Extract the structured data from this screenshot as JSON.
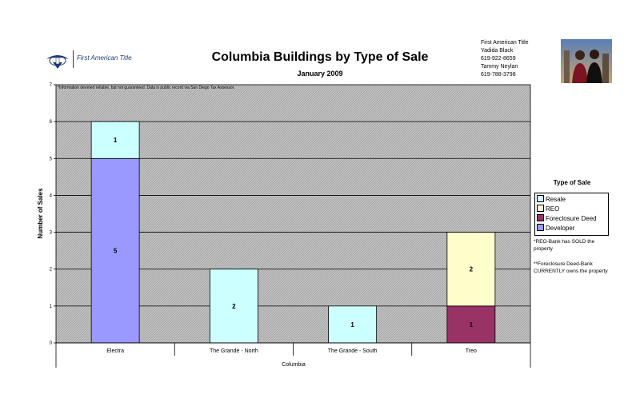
{
  "header": {
    "company": "First American Title",
    "title": "Columbia Buildings by Type of Sale",
    "subtitle": "January 2009"
  },
  "contact": {
    "company": "First American Title",
    "name1": "Yadida Black",
    "phone1": "619-922-8659",
    "name2": "Tammy Neylan",
    "phone2": "619-788-3798"
  },
  "disclaimer": "*Information deemed reliable, but not guaranteed.  Data is public record via San Diego Tax Assessor.",
  "legend": {
    "title": "Type of Sale",
    "items": [
      {
        "label": "Resale",
        "color": "#ccffff"
      },
      {
        "label": "REO",
        "color": "#ffffcc"
      },
      {
        "label": "Foreclosure Deed",
        "color": "#993366"
      },
      {
        "label": "Developer",
        "color": "#9999ff"
      }
    ]
  },
  "notes": {
    "reo": "*REO-Bank has SOLD the property",
    "foreclosure": "**Foreclosure Deed-Bank CURRENTLY owns the property"
  },
  "colors": {
    "plot_bg": "#c0c0c0",
    "gridline": "#000000"
  },
  "chart_data": {
    "type": "bar",
    "stacked": true,
    "categories": [
      "Electra",
      "The Grande - North",
      "The Grande - South",
      "Treo"
    ],
    "series": [
      {
        "name": "Developer",
        "values": [
          5,
          0,
          0,
          0
        ],
        "color": "#9999ff"
      },
      {
        "name": "Foreclosure Deed",
        "values": [
          0,
          0,
          0,
          1
        ],
        "color": "#993366"
      },
      {
        "name": "REO",
        "values": [
          0,
          0,
          0,
          2
        ],
        "color": "#ffffcc"
      },
      {
        "name": "Resale",
        "values": [
          1,
          2,
          1,
          0
        ],
        "color": "#ccffff"
      }
    ],
    "xlabel": "Columbia",
    "ylabel": "Number of Sales",
    "ylim": [
      0,
      7
    ],
    "yticks": [
      "0",
      "1",
      "2",
      "3",
      "4",
      "5",
      "6",
      "7"
    ],
    "grid": true,
    "legend_position": "right"
  }
}
